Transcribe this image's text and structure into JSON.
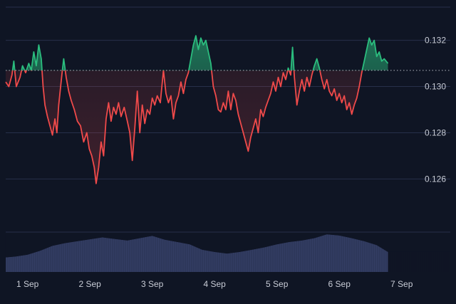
{
  "chart_data": {
    "type": "area",
    "title": "",
    "xlabel": "",
    "ylabel": "",
    "baseline": 0.1307,
    "ylim": [
      0.1245,
      0.1335
    ],
    "yticks": [
      "0.126",
      "0.128",
      "0.130",
      "0.132"
    ],
    "ytick_values": [
      0.126,
      0.128,
      0.13,
      0.132
    ],
    "xticks": [
      "1 Sep",
      "2 Sep",
      "3 Sep",
      "4 Sep",
      "5 Sep",
      "6 Sep",
      "7 Sep"
    ],
    "xtick_positions": [
      1,
      2,
      3,
      4,
      5,
      6,
      7
    ],
    "xrange": [
      0.65,
      7.78
    ],
    "grid": true,
    "colors": {
      "background": "#0f1524",
      "above": "#2bbd7e",
      "below": "#f04a4a",
      "volume": "#37416a",
      "grid": "#27304a",
      "baseline": "#cfd3dc"
    },
    "price_series": {
      "name": "",
      "points": [
        [
          0.65,
          0.1302
        ],
        [
          0.7,
          0.13
        ],
        [
          0.75,
          0.1305
        ],
        [
          0.78,
          0.1311
        ],
        [
          0.82,
          0.13
        ],
        [
          0.88,
          0.1304
        ],
        [
          0.92,
          0.1309
        ],
        [
          0.97,
          0.1306
        ],
        [
          1.02,
          0.131
        ],
        [
          1.06,
          0.1307
        ],
        [
          1.1,
          0.1315
        ],
        [
          1.14,
          0.1309
        ],
        [
          1.18,
          0.1318
        ],
        [
          1.22,
          0.1312
        ],
        [
          1.25,
          0.13
        ],
        [
          1.28,
          0.1292
        ],
        [
          1.32,
          0.1287
        ],
        [
          1.36,
          0.1283
        ],
        [
          1.4,
          0.1279
        ],
        [
          1.44,
          0.1286
        ],
        [
          1.47,
          0.128
        ],
        [
          1.5,
          0.1292
        ],
        [
          1.55,
          0.1305
        ],
        [
          1.58,
          0.1312
        ],
        [
          1.62,
          0.1304
        ],
        [
          1.66,
          0.1298
        ],
        [
          1.7,
          0.1294
        ],
        [
          1.75,
          0.129
        ],
        [
          1.8,
          0.1285
        ],
        [
          1.85,
          0.1283
        ],
        [
          1.9,
          0.1276
        ],
        [
          1.95,
          0.128
        ],
        [
          1.99,
          0.1273
        ],
        [
          2.03,
          0.127
        ],
        [
          2.07,
          0.1265
        ],
        [
          2.1,
          0.1258
        ],
        [
          2.14,
          0.1265
        ],
        [
          2.18,
          0.1276
        ],
        [
          2.22,
          0.127
        ],
        [
          2.26,
          0.1286
        ],
        [
          2.3,
          0.1293
        ],
        [
          2.34,
          0.1285
        ],
        [
          2.38,
          0.1291
        ],
        [
          2.42,
          0.1288
        ],
        [
          2.46,
          0.1293
        ],
        [
          2.5,
          0.1287
        ],
        [
          2.55,
          0.1291
        ],
        [
          2.6,
          0.1285
        ],
        [
          2.64,
          0.128
        ],
        [
          2.68,
          0.1268
        ],
        [
          2.72,
          0.1282
        ],
        [
          2.76,
          0.1298
        ],
        [
          2.8,
          0.128
        ],
        [
          2.84,
          0.1292
        ],
        [
          2.88,
          0.1284
        ],
        [
          2.92,
          0.129
        ],
        [
          2.96,
          0.1288
        ],
        [
          3.0,
          0.1295
        ],
        [
          3.04,
          0.1292
        ],
        [
          3.08,
          0.1296
        ],
        [
          3.13,
          0.1293
        ],
        [
          3.18,
          0.1307
        ],
        [
          3.22,
          0.1297
        ],
        [
          3.26,
          0.1293
        ],
        [
          3.3,
          0.1296
        ],
        [
          3.34,
          0.1286
        ],
        [
          3.38,
          0.1293
        ],
        [
          3.42,
          0.1296
        ],
        [
          3.46,
          0.1302
        ],
        [
          3.5,
          0.1297
        ],
        [
          3.54,
          0.1303
        ],
        [
          3.58,
          0.1306
        ],
        [
          3.62,
          0.1312
        ],
        [
          3.66,
          0.1318
        ],
        [
          3.7,
          0.1322
        ],
        [
          3.74,
          0.1316
        ],
        [
          3.78,
          0.1321
        ],
        [
          3.82,
          0.1318
        ],
        [
          3.86,
          0.132
        ],
        [
          3.9,
          0.1315
        ],
        [
          3.94,
          0.131
        ],
        [
          3.98,
          0.13
        ],
        [
          4.02,
          0.1296
        ],
        [
          4.06,
          0.129
        ],
        [
          4.1,
          0.1289
        ],
        [
          4.14,
          0.1293
        ],
        [
          4.18,
          0.129
        ],
        [
          4.22,
          0.1298
        ],
        [
          4.26,
          0.129
        ],
        [
          4.3,
          0.1297
        ],
        [
          4.34,
          0.1294
        ],
        [
          4.38,
          0.1288
        ],
        [
          4.42,
          0.1284
        ],
        [
          4.46,
          0.128
        ],
        [
          4.5,
          0.1276
        ],
        [
          4.54,
          0.1272
        ],
        [
          4.58,
          0.1278
        ],
        [
          4.62,
          0.1282
        ],
        [
          4.66,
          0.1286
        ],
        [
          4.7,
          0.128
        ],
        [
          4.74,
          0.129
        ],
        [
          4.78,
          0.1287
        ],
        [
          4.82,
          0.1291
        ],
        [
          4.86,
          0.1294
        ],
        [
          4.9,
          0.1297
        ],
        [
          4.94,
          0.1302
        ],
        [
          4.98,
          0.1298
        ],
        [
          5.02,
          0.1304
        ],
        [
          5.06,
          0.13
        ],
        [
          5.1,
          0.1306
        ],
        [
          5.14,
          0.1303
        ],
        [
          5.18,
          0.1308
        ],
        [
          5.22,
          0.1305
        ],
        [
          5.25,
          0.1317
        ],
        [
          5.28,
          0.1304
        ],
        [
          5.32,
          0.1292
        ],
        [
          5.36,
          0.1298
        ],
        [
          5.4,
          0.1303
        ],
        [
          5.44,
          0.1298
        ],
        [
          5.48,
          0.1304
        ],
        [
          5.52,
          0.13
        ],
        [
          5.56,
          0.1305
        ],
        [
          5.6,
          0.1309
        ],
        [
          5.64,
          0.1312
        ],
        [
          5.68,
          0.1308
        ],
        [
          5.72,
          0.1303
        ],
        [
          5.76,
          0.1299
        ],
        [
          5.8,
          0.1303
        ],
        [
          5.84,
          0.1298
        ],
        [
          5.88,
          0.1296
        ],
        [
          5.92,
          0.1299
        ],
        [
          5.96,
          0.1294
        ],
        [
          6.0,
          0.1297
        ],
        [
          6.04,
          0.1293
        ],
        [
          6.08,
          0.1296
        ],
        [
          6.12,
          0.129
        ],
        [
          6.16,
          0.1293
        ],
        [
          6.2,
          0.1288
        ],
        [
          6.24,
          0.1292
        ],
        [
          6.28,
          0.1295
        ],
        [
          6.32,
          0.13
        ],
        [
          6.36,
          0.1306
        ],
        [
          6.4,
          0.1311
        ],
        [
          6.44,
          0.1316
        ],
        [
          6.48,
          0.1321
        ],
        [
          6.52,
          0.1318
        ],
        [
          6.56,
          0.132
        ],
        [
          6.6,
          0.1313
        ],
        [
          6.64,
          0.1315
        ],
        [
          6.68,
          0.1311
        ],
        [
          6.72,
          0.1312
        ],
        [
          6.78,
          0.131
        ]
      ]
    },
    "volume_series": {
      "name": "",
      "ylim": [
        0,
        1
      ],
      "points": [
        [
          0.65,
          0.38
        ],
        [
          0.8,
          0.4
        ],
        [
          1.0,
          0.45
        ],
        [
          1.2,
          0.55
        ],
        [
          1.4,
          0.68
        ],
        [
          1.6,
          0.75
        ],
        [
          1.8,
          0.8
        ],
        [
          2.0,
          0.85
        ],
        [
          2.2,
          0.9
        ],
        [
          2.4,
          0.86
        ],
        [
          2.6,
          0.82
        ],
        [
          2.8,
          0.88
        ],
        [
          3.0,
          0.94
        ],
        [
          3.2,
          0.84
        ],
        [
          3.4,
          0.78
        ],
        [
          3.6,
          0.72
        ],
        [
          3.8,
          0.58
        ],
        [
          4.0,
          0.52
        ],
        [
          4.2,
          0.48
        ],
        [
          4.4,
          0.52
        ],
        [
          4.6,
          0.58
        ],
        [
          4.8,
          0.64
        ],
        [
          5.0,
          0.72
        ],
        [
          5.2,
          0.78
        ],
        [
          5.4,
          0.82
        ],
        [
          5.6,
          0.88
        ],
        [
          5.8,
          0.98
        ],
        [
          6.0,
          0.95
        ],
        [
          6.2,
          0.88
        ],
        [
          6.4,
          0.8
        ],
        [
          6.6,
          0.7
        ],
        [
          6.78,
          0.52
        ]
      ]
    }
  }
}
